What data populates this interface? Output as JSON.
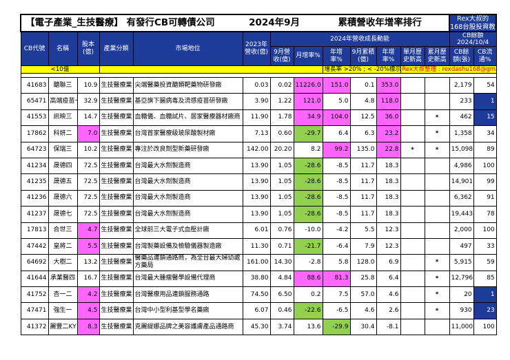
{
  "title": {
    "main": "【電子產業_生技醫療】 有發行CB可轉債公司",
    "month": "2024年9月",
    "subject": "累積營收年增率排行",
    "rex_line1": "Rex大叔的",
    "rex_line2": "168台股投資教室"
  },
  "headers": {
    "code": "CB代號",
    "name": "名稱",
    "capital": "股本(億)",
    "industry": "產業分類",
    "market": "市場地位",
    "rev2023": "2023年營收(億)",
    "group_growth": "2024年營收成長動能",
    "sep_rev": "9月營收(億)",
    "mom": "月增率%",
    "yoy": "年增率%",
    "cum_rev": "9月累積(億)",
    "cum_yoy": "年增率%",
    "month_high": "單月歷史新高",
    "cum_high": "累月歷史新高",
    "cb_title": "CB餘額",
    "cb_date": "2024/10/4",
    "cb_balance": "CB餘額(張)",
    "cb_flow": "CB流通%"
  },
  "legend": {
    "under10": "<10億",
    "growth_mark": "增長率 >20% ; < -20%標示",
    "credit": "Rex大叔整理 : rexdashu168@gmail.com"
  },
  "colors": {
    "header_blue": "#1f3b9a",
    "pink": "#ff66ff",
    "green": "#92d050",
    "yellow": "#ffff00"
  },
  "rows": [
    {
      "code": "41683",
      "name": "醣聯三",
      "capital": "10.9",
      "industry": "生技醫療業",
      "market": "尖端醫藥投資醣類靶藥物研發廠",
      "rev2023": "0.03",
      "sep_rev": "0.02",
      "mom": "11226.0",
      "yoy": "151.0",
      "cum_rev": "0.1",
      "cum_yoy": "353.0",
      "month_high": "",
      "cum_high": "",
      "cb_balance": "2,179",
      "cb_flow": "54",
      "cap_c": "",
      "mom_c": "pink",
      "yoy_c": "pink",
      "cum_c": "pink",
      "flow_c": ""
    },
    {
      "code": "65471",
      "name": "高端疫苗一",
      "capital": "32.9",
      "industry": "生技醫療業",
      "market": "基亞旗下腸病毒及流感疫苗研發廠",
      "rev2023": "3.90",
      "sep_rev": "1.22",
      "mom": "121.0",
      "yoy": "5.0",
      "cum_rev": "4.8",
      "cum_yoy": "118.0",
      "month_high": "",
      "cum_high": "",
      "cb_balance": "233",
      "cb_flow": "1",
      "cap_c": "",
      "mom_c": "pink",
      "yoy_c": "",
      "cum_c": "pink",
      "flow_c": "blue"
    },
    {
      "code": "41553",
      "name": "訊映三",
      "capital": "14.7",
      "industry": "生技醫療業",
      "market": "血糖儀、血糖試片、居家醫療器材廠商",
      "rev2023": "11.90",
      "sep_rev": "1.78",
      "mom": "34.9",
      "yoy": "104.0",
      "cum_rev": "12.5",
      "cum_yoy": "36.0",
      "month_high": "",
      "cum_high": "*",
      "cb_balance": "462",
      "cb_flow": "15",
      "cap_c": "",
      "mom_c": "pink",
      "yoy_c": "pink",
      "cum_c": "pink",
      "flow_c": "blue"
    },
    {
      "code": "17862",
      "name": "科妍二",
      "capital": "7.0",
      "industry": "生技醫療業",
      "market": "台灣首家醫療級玻尿酸製材廠",
      "rev2023": "7.13",
      "sep_rev": "0.60",
      "mom": "-29.7",
      "yoy": "6.4",
      "cum_rev": "6.3",
      "cum_yoy": "23.2",
      "month_high": "",
      "cum_high": "*",
      "cb_balance": "1,358",
      "cb_flow": "34",
      "cap_c": "pink",
      "mom_c": "green",
      "yoy_c": "",
      "cum_c": "pink",
      "flow_c": ""
    },
    {
      "code": "64723",
      "name": "保瑞三",
      "capital": "10.2",
      "industry": "生技醫療業",
      "market": "專注於改良劑型新藥研發廠",
      "rev2023": "142.00",
      "sep_rev": "20.20",
      "mom": "8.2",
      "yoy": "99.2",
      "cum_rev": "135.0",
      "cum_yoy": "22.8",
      "month_high": "*",
      "cum_high": "*",
      "cb_balance": "15,098",
      "cb_flow": "89",
      "cap_c": "",
      "mom_c": "",
      "yoy_c": "pink",
      "cum_c": "pink",
      "flow_c": ""
    },
    {
      "code": "41234",
      "name": "晟德四",
      "capital": "72.5",
      "industry": "生技醫療業",
      "market": "台灣最大水劑製造商",
      "rev2023": "13.90",
      "sep_rev": "1.05",
      "mom": "-28.6",
      "yoy": "-8.5",
      "cum_rev": "11.7",
      "cum_yoy": "18.3",
      "month_high": "",
      "cum_high": "",
      "cb_balance": "4,986",
      "cb_flow": "100",
      "cap_c": "",
      "mom_c": "green",
      "yoy_c": "",
      "cum_c": "",
      "flow_c": ""
    },
    {
      "code": "41235",
      "name": "晟德五",
      "capital": "72.5",
      "industry": "生技醫療業",
      "market": "台灣最大水劑製造商",
      "rev2023": "13.90",
      "sep_rev": "1.05",
      "mom": "-28.6",
      "yoy": "-8.5",
      "cum_rev": "11.7",
      "cum_yoy": "18.3",
      "month_high": "",
      "cum_high": "",
      "cb_balance": "14,901",
      "cb_flow": "99",
      "cap_c": "",
      "mom_c": "green",
      "yoy_c": "",
      "cum_c": "",
      "flow_c": ""
    },
    {
      "code": "41236",
      "name": "晟德六",
      "capital": "72.5",
      "industry": "生技醫療業",
      "market": "台灣最大水劑製造商",
      "rev2023": "13.90",
      "sep_rev": "1.05",
      "mom": "-28.6",
      "yoy": "-8.5",
      "cum_rev": "11.7",
      "cum_yoy": "18.3",
      "month_high": "",
      "cum_high": "",
      "cb_balance": "6,362",
      "cb_flow": "91",
      "cap_c": "",
      "mom_c": "green",
      "yoy_c": "",
      "cum_c": "",
      "flow_c": ""
    },
    {
      "code": "41237",
      "name": "晟德七",
      "capital": "72.5",
      "industry": "生技醫療業",
      "market": "台灣最大水劑製造商",
      "rev2023": "13.90",
      "sep_rev": "1.05",
      "mom": "-28.6",
      "yoy": "-8.5",
      "cum_rev": "11.7",
      "cum_yoy": "18.3",
      "month_high": "",
      "cum_high": "",
      "cb_balance": "19,443",
      "cb_flow": "78",
      "cap_c": "",
      "mom_c": "green",
      "yoy_c": "",
      "cum_c": "",
      "flow_c": ""
    },
    {
      "code": "17813",
      "name": "合世三",
      "capital": "4.7",
      "industry": "生技醫療業",
      "market": "全球前三大電子式血壓計廠",
      "rev2023": "6.01",
      "sep_rev": "0.76",
      "mom": "-10.0",
      "yoy": "-4.2",
      "cum_rev": "5.5",
      "cum_yoy": "12.3",
      "month_high": "",
      "cum_high": "",
      "cb_balance": "2,000",
      "cb_flow": "100",
      "cap_c": "pink",
      "mom_c": "",
      "yoy_c": "",
      "cum_c": "",
      "flow_c": ""
    },
    {
      "code": "47442",
      "name": "皇將二",
      "capital": "5.5",
      "industry": "生技醫療業",
      "market": "台灣製藥設備及檢驗儀器製造廠",
      "rev2023": "11.30",
      "sep_rev": "0.71",
      "mom": "-21.7",
      "yoy": "-6.4",
      "cum_rev": "7.9",
      "cum_yoy": "12.3",
      "month_high": "",
      "cum_high": "",
      "cb_balance": "497",
      "cb_flow": "33",
      "cap_c": "pink",
      "mom_c": "green",
      "yoy_c": "",
      "cum_c": "",
      "flow_c": ""
    },
    {
      "code": "64692",
      "name": "大樹二",
      "capital": "13.2",
      "industry": "生技醫療業",
      "market": "醫藥品連鎖通路商，為全台最大婦幼處方藥局",
      "rev2023": "161.00",
      "sep_rev": "14.30",
      "mom": "-2.8",
      "yoy": "5.8",
      "cum_rev": "128.0",
      "cum_yoy": "6.9",
      "month_high": "",
      "cum_high": "*",
      "cb_balance": "5,915",
      "cb_flow": "59",
      "cap_c": "",
      "mom_c": "",
      "yoy_c": "",
      "cum_c": "",
      "flow_c": ""
    },
    {
      "code": "41644",
      "name": "承業醫四",
      "capital": "16.7",
      "industry": "生技醫療業",
      "market": "台灣最大腫瘤醫學設備代理商",
      "rev2023": "38.80",
      "sep_rev": "4.84",
      "mom": "88.6",
      "yoy": "81.3",
      "cum_rev": "25.8",
      "cum_yoy": "6.4",
      "month_high": "",
      "cum_high": "*",
      "cb_balance": "12,796",
      "cb_flow": "85",
      "cap_c": "",
      "mom_c": "pink",
      "yoy_c": "pink",
      "cum_c": "",
      "flow_c": ""
    },
    {
      "code": "41752",
      "name": "杏一二",
      "capital": "4.2",
      "industry": "生技醫療業",
      "market": "台灣醫療用品連鎖服務通路",
      "rev2023": "74.50",
      "sep_rev": "6.50",
      "mom": "0.2",
      "yoy": "7.5",
      "cum_rev": "57.0",
      "cum_yoy": "4.6",
      "month_high": "",
      "cum_high": "*",
      "cb_balance": "20",
      "cb_flow": "1",
      "cap_c": "pink",
      "mom_c": "",
      "yoy_c": "",
      "cum_c": "",
      "flow_c": "blue"
    },
    {
      "code": "47471",
      "name": "強生一",
      "capital": "4.5",
      "industry": "生技醫療業",
      "market": "台灣中小型利基型學名藥廠",
      "rev2023": "6.07",
      "sep_rev": "0.46",
      "mom": "-22.6",
      "yoy": "-6.5",
      "cum_rev": "4.6",
      "cum_yoy": "2.6",
      "month_high": "",
      "cum_high": "*",
      "cb_balance": "930",
      "cb_flow": "23",
      "cap_c": "pink",
      "mom_c": "green",
      "yoy_c": "",
      "cum_c": "",
      "flow_c": "blue"
    },
    {
      "code": "41372",
      "name": "麗豐二KY",
      "capital": "8.3",
      "industry": "生技醫療業",
      "market": "克麗緹娜品牌之美容護膚產品通路商",
      "rev2023": "45.30",
      "sep_rev": "3.74",
      "mom": "13.6",
      "yoy": "-29.9",
      "cum_rev": "30.4",
      "cum_yoy": "-8.1",
      "month_high": "",
      "cum_high": "",
      "cb_balance": "11,000",
      "cb_flow": "100",
      "cap_c": "pink",
      "mom_c": "",
      "yoy_c": "green",
      "cum_c": "",
      "flow_c": ""
    }
  ]
}
